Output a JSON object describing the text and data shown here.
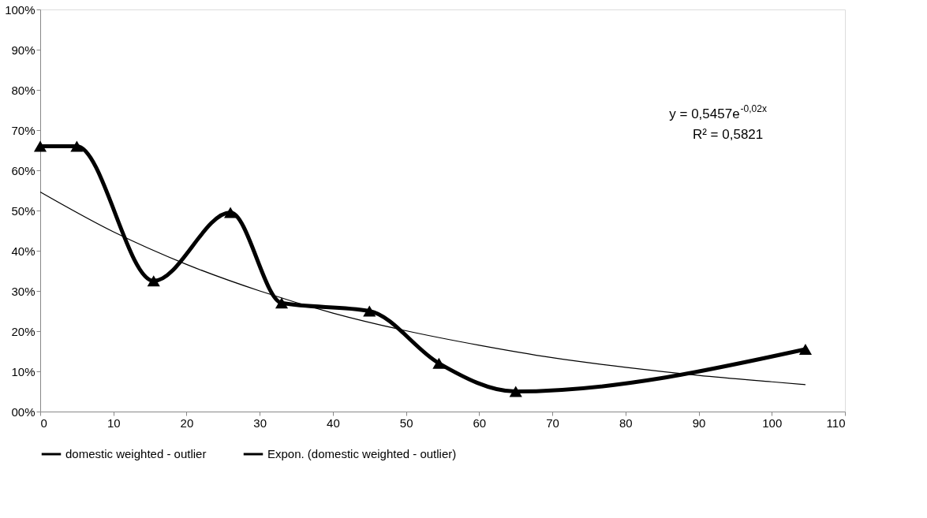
{
  "chart_data": {
    "type": "line",
    "x": [
      0,
      5,
      15.5,
      26,
      33,
      45,
      54.5,
      65,
      104.6
    ],
    "series": [
      {
        "name": "domestic weighted - outlier",
        "color": "#000000",
        "values": [
          66,
          66,
          32.5,
          49.5,
          27,
          25,
          12,
          5,
          15.5
        ]
      },
      {
        "name": "Expon. (domestic weighted - outlier)",
        "color": "#000000",
        "type": "line",
        "marker": "none",
        "x": [
          0,
          10,
          20,
          30,
          40,
          50,
          60,
          70,
          80,
          90,
          100,
          104.6
        ],
        "values": [
          54.6,
          44.7,
          36.6,
          30,
          24.5,
          20.1,
          16.5,
          13.4,
          11,
          9,
          7.4,
          6.7
        ]
      }
    ],
    "xlim": [
      0,
      110
    ],
    "xticks": [
      0,
      10,
      20,
      30,
      40,
      50,
      60,
      70,
      80,
      90,
      100,
      110
    ],
    "ylim": [
      0,
      100
    ],
    "yticks": [
      {
        "value": 0,
        "label": "00%"
      },
      {
        "value": 10,
        "label": "10%"
      },
      {
        "value": 20,
        "label": "20%"
      },
      {
        "value": 30,
        "label": "30%"
      },
      {
        "value": 40,
        "label": "40%"
      },
      {
        "value": 50,
        "label": "50%"
      },
      {
        "value": 60,
        "label": "60%"
      },
      {
        "value": 70,
        "label": "70%"
      },
      {
        "value": 80,
        "label": "80%"
      },
      {
        "value": 90,
        "label": "90%"
      },
      {
        "value": 100,
        "label": "100%"
      }
    ],
    "annotations": [
      "y = 0,5457e$^{-0,02x}$",
      "R² = 0,5821"
    ],
    "marker": "triangle",
    "line_style": "solid",
    "legend": "bottom",
    "grid": false
  }
}
